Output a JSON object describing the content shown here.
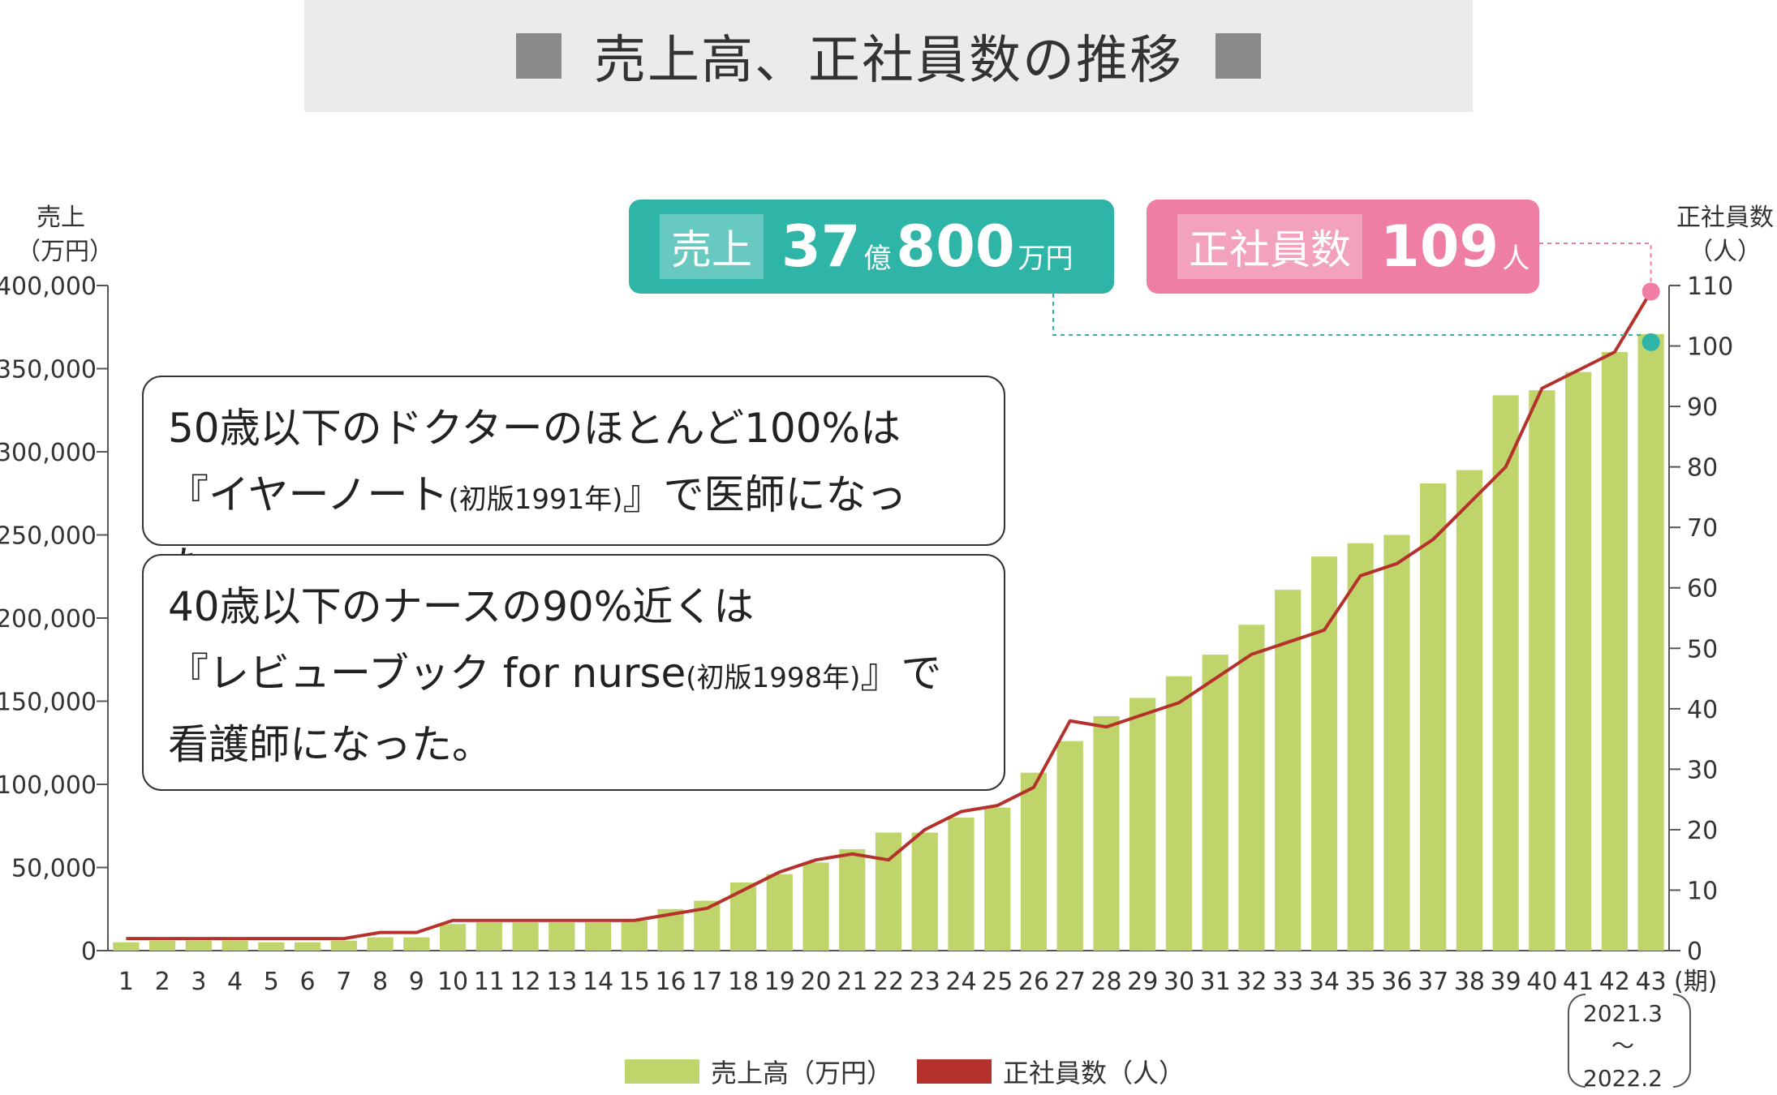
{
  "title": "売上高、正社員数の推移",
  "left_axis_title": [
    "売上",
    "（万円）"
  ],
  "right_axis_title": [
    "正社員数",
    "（人）"
  ],
  "period_unit": "(期)",
  "period_range": [
    "2021.3",
    "〜",
    "2022.2"
  ],
  "badges": {
    "sales": {
      "label": "売上",
      "num1": "37",
      "unit1": "億",
      "num2": "800",
      "unit2": "万円",
      "color": "#2fb5a8"
    },
    "staff": {
      "label": "正社員数",
      "num": "109",
      "unit": "人",
      "color": "#ee7ea4"
    }
  },
  "box1": {
    "line1": "50歳以下のドクターのほとんど100%は",
    "line2a": "『イヤーノート",
    "line2b": "(初版1991年)",
    "line2c": "』で医師になった。"
  },
  "box2": {
    "line1": "40歳以下のナースの90%近くは",
    "line2a": "『レビューブック for nurse",
    "line2b": "(初版1998年)",
    "line2c": "』で",
    "line3": "看護師になった。"
  },
  "legend": {
    "bar": "売上高（万円）",
    "line": "正社員数（人）"
  },
  "colors": {
    "bar": "#bfd46a",
    "line": "#b5312c",
    "teal": "#2fb5a8",
    "pink": "#ee7ea4"
  },
  "chart_data": {
    "type": "bar+line",
    "categories": [
      "1",
      "2",
      "3",
      "4",
      "5",
      "6",
      "7",
      "8",
      "9",
      "10",
      "11",
      "12",
      "13",
      "14",
      "15",
      "16",
      "17",
      "18",
      "19",
      "20",
      "21",
      "22",
      "23",
      "24",
      "25",
      "26",
      "27",
      "28",
      "29",
      "30",
      "31",
      "32",
      "33",
      "34",
      "35",
      "36",
      "37",
      "38",
      "39",
      "40",
      "41",
      "42",
      "43"
    ],
    "series": [
      {
        "name": "売上高（万円）",
        "type": "bar",
        "axis": "left",
        "values": [
          5000,
          6000,
          6000,
          6000,
          5000,
          5000,
          6000,
          8000,
          8000,
          16000,
          17000,
          17000,
          17000,
          17000,
          18000,
          25000,
          30000,
          41000,
          46000,
          53000,
          61000,
          71000,
          71000,
          80000,
          86000,
          107000,
          126000,
          141000,
          152000,
          165000,
          178000,
          196000,
          217000,
          237000,
          245000,
          250000,
          281000,
          289000,
          334000,
          337000,
          348000,
          360000,
          370800
        ]
      },
      {
        "name": "正社員数（人）",
        "type": "line",
        "axis": "right",
        "values": [
          2,
          2,
          2,
          2,
          2,
          2,
          2,
          3,
          3,
          5,
          5,
          5,
          5,
          5,
          5,
          6,
          7,
          10,
          13,
          15,
          16,
          15,
          20,
          23,
          24,
          27,
          38,
          37,
          39,
          41,
          45,
          49,
          51,
          53,
          62,
          64,
          68,
          74,
          80,
          93,
          96,
          99,
          109
        ]
      }
    ],
    "left_axis": {
      "min": 0,
      "max": 400000,
      "ticks": [
        "0",
        "50,000",
        "100,000",
        "150,000",
        "200,000",
        "250,000",
        "300,000",
        "350,000",
        "400,000"
      ]
    },
    "right_axis": {
      "min": 0,
      "max": 110,
      "ticks": [
        "0",
        "10",
        "20",
        "30",
        "40",
        "50",
        "60",
        "70",
        "80",
        "90",
        "100",
        "110"
      ]
    }
  }
}
